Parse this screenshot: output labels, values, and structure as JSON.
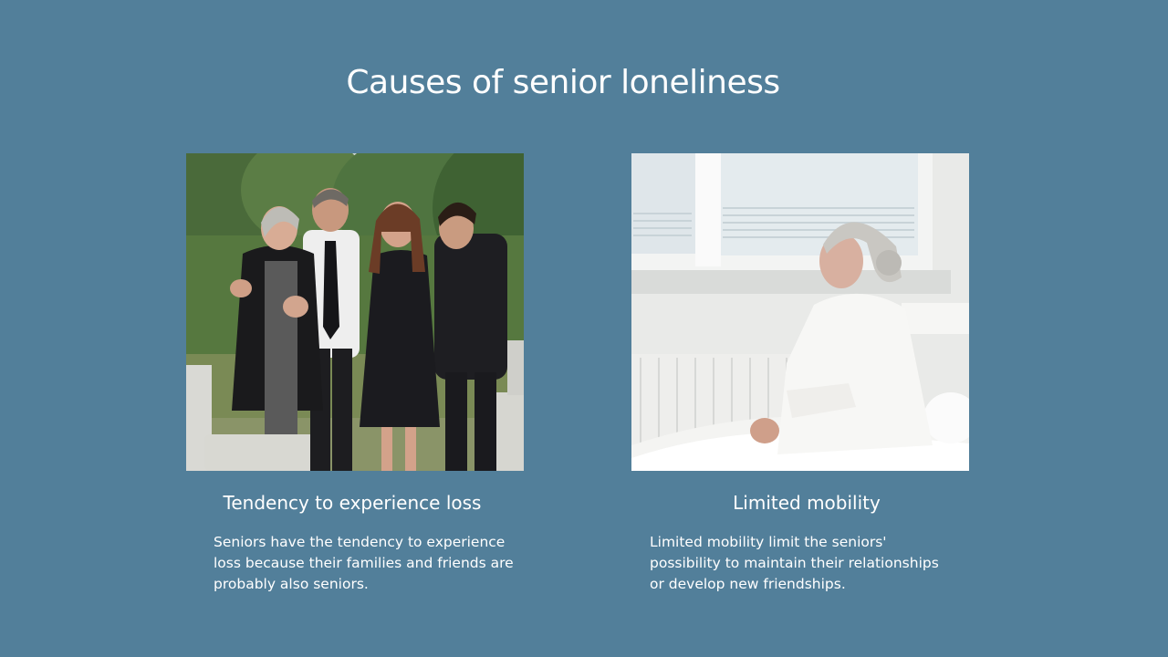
{
  "slide": {
    "title": "Causes of senior loneliness",
    "columns": [
      {
        "heading": "Tendency to experience loss",
        "body": "Seniors have the tendency to experience loss because their families and friends are probably also seniors."
      },
      {
        "heading": "Limited mobility",
        "body": "Limited mobility limit the seniors' possibility to maintain their relationships or develop new friendships."
      }
    ]
  },
  "colors": {
    "background": "#527f9a",
    "text": "#ffffff"
  }
}
